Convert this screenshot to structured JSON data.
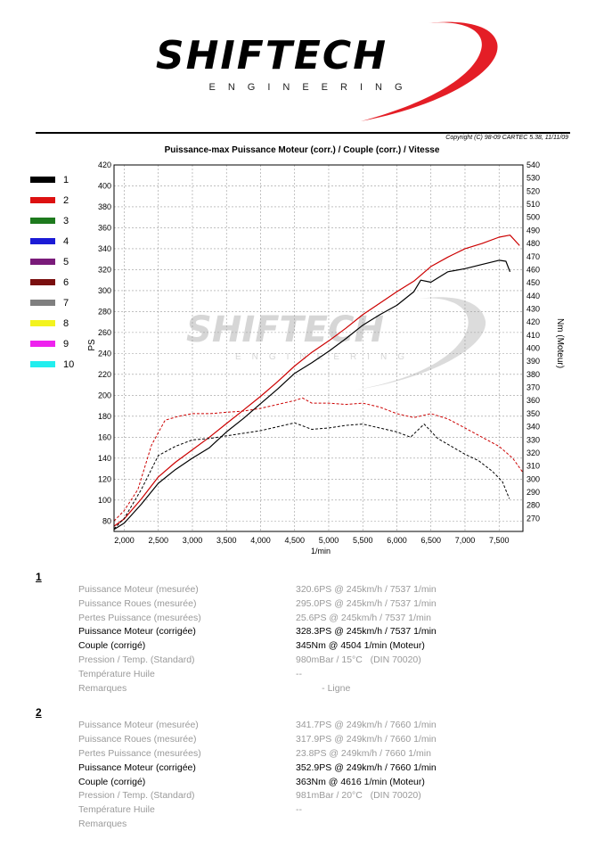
{
  "logo": {
    "brand": "SHIFTECH",
    "subtitle": "ENGINEERING"
  },
  "copyright": "Copyright (C) 98-09 CARTEC 5.38, 11/11/09",
  "colors": {
    "run1": "#000000",
    "run2": "#cc0000",
    "grid": "#9a9a9a",
    "logo_red": "#e41e26"
  },
  "legend": [
    {
      "label": "1",
      "color": "#000000"
    },
    {
      "label": "2",
      "color": "#dd1111"
    },
    {
      "label": "3",
      "color": "#1e7a1e"
    },
    {
      "label": "4",
      "color": "#1b1bd6"
    },
    {
      "label": "5",
      "color": "#7a1b7a"
    },
    {
      "label": "6",
      "color": "#7a0f0f"
    },
    {
      "label": "7",
      "color": "#7f7f7f"
    },
    {
      "label": "8",
      "color": "#f3f31e"
    },
    {
      "label": "9",
      "color": "#ee22ee"
    },
    {
      "label": "10",
      "color": "#22eeee"
    }
  ],
  "chart_data": {
    "type": "line",
    "title": "Puissance-max Puissance Moteur (corr.) / Couple (corr.) / Vitesse",
    "xlabel": "1/min",
    "ylabel_left": "PS",
    "ylabel_right": "Nm (Moteur)",
    "xlim": [
      1850,
      7850
    ],
    "ylim_left": [
      70,
      420
    ],
    "ylim_right": [
      260,
      540
    ],
    "x_ticks": [
      "2,000",
      "2,500",
      "3,000",
      "3,500",
      "4,000",
      "4,500",
      "5,000",
      "5,500",
      "6,000",
      "6,500",
      "7,000",
      "7,500"
    ],
    "x_tick_values": [
      2000,
      2500,
      3000,
      3500,
      4000,
      4500,
      5000,
      5500,
      6000,
      6500,
      7000,
      7500
    ],
    "y_ticks_left": [
      80,
      100,
      120,
      140,
      160,
      180,
      200,
      220,
      240,
      260,
      280,
      300,
      320,
      340,
      360,
      380,
      400,
      420
    ],
    "y_ticks_right": [
      270,
      280,
      290,
      300,
      310,
      320,
      330,
      340,
      350,
      360,
      370,
      380,
      390,
      400,
      410,
      420,
      430,
      440,
      450,
      460,
      470,
      480,
      490,
      500,
      510,
      520,
      530,
      540
    ],
    "grid": true,
    "series": [
      {
        "name": "1",
        "kind": "power",
        "axis": "left",
        "style": "solid",
        "color": "#000000",
        "x": [
          1850,
          2000,
          2250,
          2500,
          2750,
          3000,
          3250,
          3500,
          3750,
          4000,
          4250,
          4500,
          4750,
          5000,
          5250,
          5500,
          5750,
          6000,
          6250,
          6350,
          6500,
          6750,
          7000,
          7250,
          7500,
          7600,
          7660
        ],
        "y": [
          72,
          78,
          96,
          116,
          129,
          140,
          150,
          165,
          178,
          192,
          206,
          221,
          231,
          242,
          254,
          267,
          277,
          286,
          299,
          310,
          308,
          318,
          321,
          325,
          329,
          328,
          318
        ]
      },
      {
        "name": "2",
        "kind": "power",
        "axis": "left",
        "style": "solid",
        "color": "#cc0000",
        "x": [
          1850,
          2000,
          2250,
          2500,
          2750,
          3000,
          3250,
          3500,
          3750,
          4000,
          4250,
          4500,
          4750,
          5000,
          5250,
          5500,
          5750,
          6000,
          6250,
          6500,
          6750,
          7000,
          7250,
          7500,
          7660,
          7800
        ],
        "y": [
          75,
          82,
          101,
          122,
          136,
          148,
          160,
          173,
          186,
          199,
          213,
          228,
          241,
          252,
          264,
          277,
          288,
          299,
          309,
          323,
          332,
          340,
          345,
          351,
          353,
          343
        ]
      },
      {
        "name": "1",
        "kind": "torque",
        "axis": "right",
        "style": "dashed",
        "color": "#000000",
        "x": [
          1850,
          2000,
          2250,
          2500,
          2750,
          3000,
          3250,
          3500,
          3750,
          4000,
          4250,
          4500,
          4750,
          5000,
          5250,
          5500,
          5750,
          6000,
          6200,
          6400,
          6600,
          6800,
          7000,
          7200,
          7400,
          7550,
          7650
        ],
        "y": [
          262,
          270,
          292,
          318,
          325,
          330,
          331,
          333,
          335,
          337,
          340,
          343,
          338,
          339,
          341,
          342,
          339,
          336,
          332,
          342,
          331,
          325,
          319,
          314,
          306,
          298,
          285
        ]
      },
      {
        "name": "2",
        "kind": "torque",
        "axis": "right",
        "style": "dashed",
        "color": "#cc0000",
        "x": [
          1850,
          2000,
          2200,
          2400,
          2600,
          2800,
          3000,
          3250,
          3500,
          3750,
          4000,
          4250,
          4500,
          4616,
          4750,
          5000,
          5250,
          5500,
          5750,
          6000,
          6250,
          6500,
          6750,
          7000,
          7250,
          7500,
          7700,
          7850
        ],
        "y": [
          268,
          276,
          292,
          326,
          345,
          348,
          350,
          350,
          351,
          352,
          354,
          357,
          360,
          362,
          358,
          358,
          357,
          358,
          355,
          350,
          347,
          350,
          346,
          339,
          332,
          325,
          316,
          305
        ]
      }
    ]
  },
  "results": [
    {
      "number": "1",
      "rows": [
        {
          "label": "Puissance Moteur (mesurée)",
          "value": "320.6PS @ 245km/h / 7537 1/min",
          "strong": false
        },
        {
          "label": "Puissance Roues (mesurée)",
          "value": "295.0PS @ 245km/h / 7537 1/min",
          "strong": false
        },
        {
          "label": "Pertes Puissance (mesurées)",
          "value": "25.6PS @ 245km/h / 7537 1/min",
          "strong": false
        },
        {
          "label": "Puissance Moteur (corrigée)",
          "value": "328.3PS @ 245km/h / 7537 1/min",
          "strong": true
        },
        {
          "label": "Couple (corrigé)",
          "value": "345Nm @ 4504 1/min (Moteur)",
          "strong": true
        },
        {
          "label": "Pression / Temp. (Standard)",
          "value": "980mBar / 15°C   (DIN 70020)",
          "strong": false
        },
        {
          "label": "Température Huile",
          "value": "--",
          "strong": false
        },
        {
          "label": "Remarques",
          "value": "          - Ligne",
          "strong": false
        }
      ]
    },
    {
      "number": "2",
      "rows": [
        {
          "label": "Puissance Moteur (mesurée)",
          "value": "341.7PS @ 249km/h / 7660 1/min",
          "strong": false
        },
        {
          "label": "Puissance Roues (mesurée)",
          "value": "317.9PS @ 249km/h / 7660 1/min",
          "strong": false
        },
        {
          "label": "Pertes Puissance (mesurées)",
          "value": "23.8PS @ 249km/h / 7660 1/min",
          "strong": false
        },
        {
          "label": "Puissance Moteur (corrigée)",
          "value": "352.9PS @ 249km/h / 7660 1/min",
          "strong": true
        },
        {
          "label": "Couple (corrigé)",
          "value": "363Nm @ 4616 1/min (Moteur)",
          "strong": true
        },
        {
          "label": "Pression / Temp. (Standard)",
          "value": "981mBar / 20°C   (DIN 70020)",
          "strong": false
        },
        {
          "label": "Température Huile",
          "value": "--",
          "strong": false
        },
        {
          "label": "Remarques",
          "value": "",
          "strong": false
        }
      ]
    }
  ]
}
